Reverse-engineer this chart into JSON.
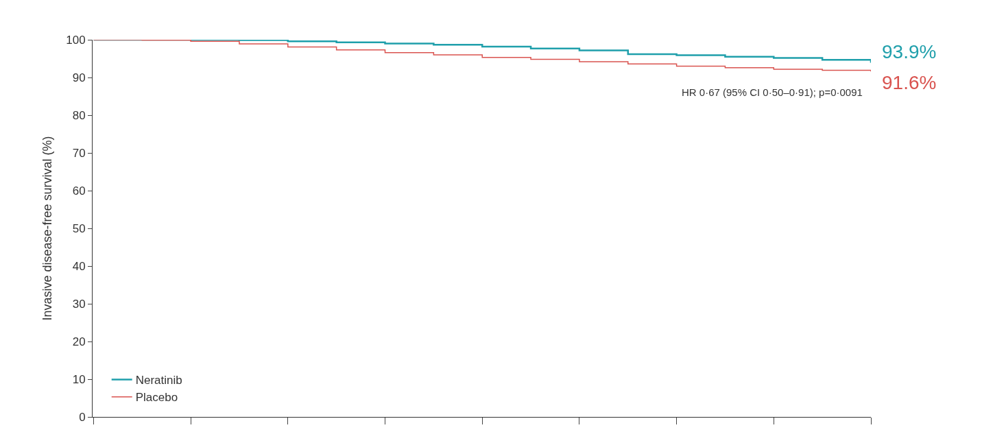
{
  "chart_data": {
    "type": "step",
    "ylabel": "Invasive disease-free survival (%)",
    "categories": [
      null,
      null,
      null,
      null,
      null,
      null,
      null,
      null,
      null,
      null,
      null,
      null,
      null,
      null,
      null,
      null,
      null
    ],
    "series": [
      {
        "name": "Neratinib",
        "color": "#1f9fab",
        "values": [
          100,
          100,
          100,
          99.9,
          99.6,
          99.3,
          99.0,
          98.7,
          98.2,
          97.7,
          97.2,
          96.2,
          95.9,
          95.5,
          95.2,
          94.7,
          93.9
        ],
        "value_labels": [
          null,
          null,
          null,
          null,
          null,
          null,
          null,
          null,
          null,
          null,
          null,
          null,
          null,
          null,
          null,
          null,
          "93.9%"
        ]
      },
      {
        "name": "Placebo",
        "color": "#d9534f",
        "values": [
          100,
          99.9,
          99.6,
          98.9,
          98.1,
          97.3,
          96.6,
          96.0,
          95.3,
          94.8,
          94.2,
          93.6,
          93.0,
          92.6,
          92.2,
          91.9,
          91.6
        ],
        "value_labels": [
          null,
          null,
          null,
          null,
          null,
          null,
          null,
          null,
          null,
          null,
          null,
          null,
          null,
          null,
          null,
          null,
          "91.6%"
        ]
      }
    ],
    "ylim": [
      0,
      100
    ],
    "yticks": [
      0,
      10,
      20,
      30,
      40,
      50,
      60,
      70,
      80,
      90,
      100
    ],
    "annotations": [
      "HR 0·67 (95% CI 0·50–0·91); p=0·0091"
    ],
    "legend": "bottom left",
    "marker": "none",
    "line_style": "solid"
  }
}
